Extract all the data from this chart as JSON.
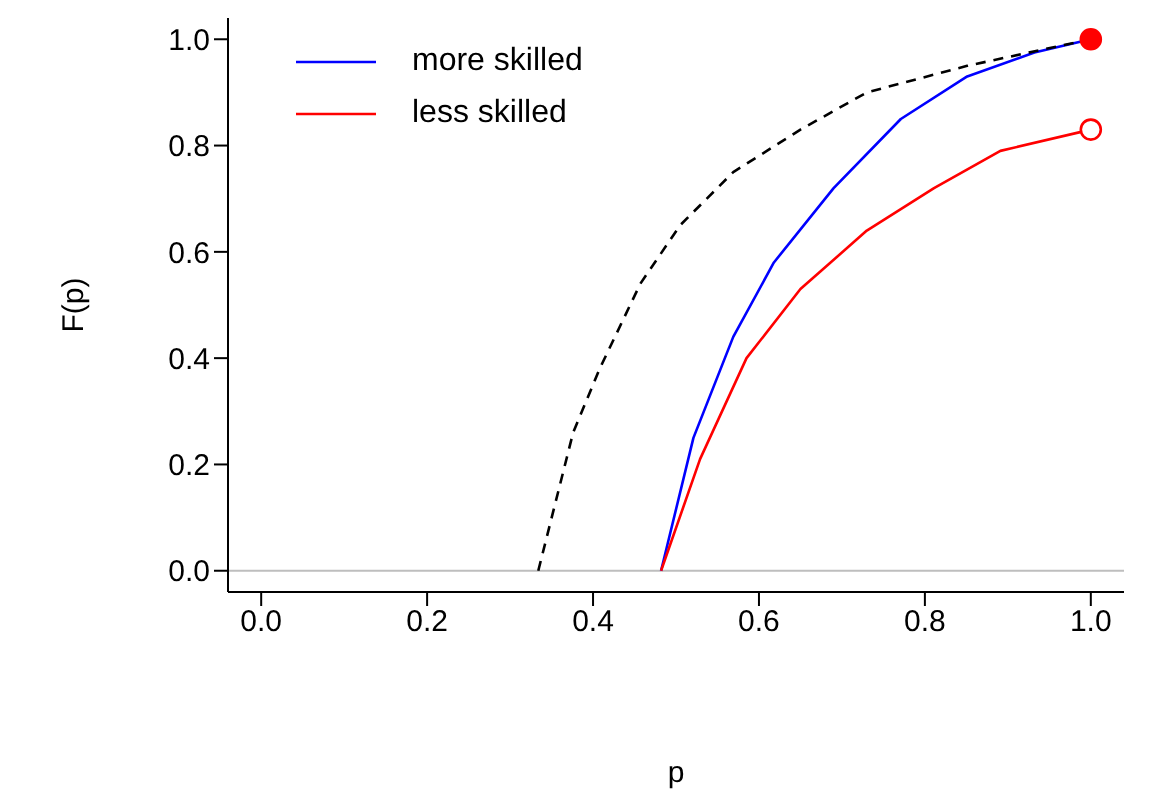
{
  "chart_data": {
    "type": "line",
    "xlabel": "p",
    "ylabel": "F(p)",
    "xlim": [
      -0.04,
      1.04
    ],
    "ylim": [
      -0.04,
      1.04
    ],
    "xticks": [
      {
        "value": 0,
        "label": "0.0"
      },
      {
        "value": 0.2,
        "label": "0.2"
      },
      {
        "value": 0.4,
        "label": "0.4"
      },
      {
        "value": 0.6,
        "label": "0.6"
      },
      {
        "value": 0.8,
        "label": "0.8"
      },
      {
        "value": 1,
        "label": "1.0"
      }
    ],
    "yticks": [
      {
        "value": 0,
        "label": "0.0"
      },
      {
        "value": 0.2,
        "label": "0.2"
      },
      {
        "value": 0.4,
        "label": "0.4"
      },
      {
        "value": 0.6,
        "label": "0.6"
      },
      {
        "value": 0.8,
        "label": "0.8"
      },
      {
        "value": 1,
        "label": "1.0"
      }
    ],
    "legend": "top left",
    "grid": false,
    "ref_lines": [
      {
        "axis": "y",
        "value": 0,
        "color": "#bebebe"
      }
    ],
    "series": [
      {
        "name": "more skilled",
        "color": "#0000ff",
        "x": [
          0.482,
          0.521,
          0.569,
          0.618,
          0.69,
          0.771,
          0.851,
          0.932,
          1
        ],
        "values": [
          0,
          0.25,
          0.44,
          0.58,
          0.72,
          0.85,
          0.93,
          0.975,
          1
        ]
      },
      {
        "name": "less skilled",
        "color": "#ff0000",
        "x": [
          0.482,
          0.529,
          0.585,
          0.65,
          0.73,
          0.811,
          0.891,
          1
        ],
        "values": [
          0,
          0.21,
          0.4,
          0.53,
          0.64,
          0.72,
          0.79,
          0.83
        ]
      },
      {
        "color": "#000000",
        "line_style": "dashed",
        "x": [
          0.334,
          0.376,
          0.408,
          0.457,
          0.505,
          0.569,
          0.65,
          0.73,
          0.851,
          1
        ],
        "values": [
          0,
          0.26,
          0.38,
          0.54,
          0.65,
          0.75,
          0.83,
          0.9,
          0.95,
          1
        ]
      },
      {
        "type": "scatter",
        "color": "#ff0000",
        "marker": "circle",
        "x": [
          1
        ],
        "values": [
          1
        ]
      },
      {
        "type": "scatter",
        "color": "#ff0000",
        "marker": "circle",
        "x": [
          1
        ],
        "values": [
          0.83
        ]
      }
    ]
  }
}
